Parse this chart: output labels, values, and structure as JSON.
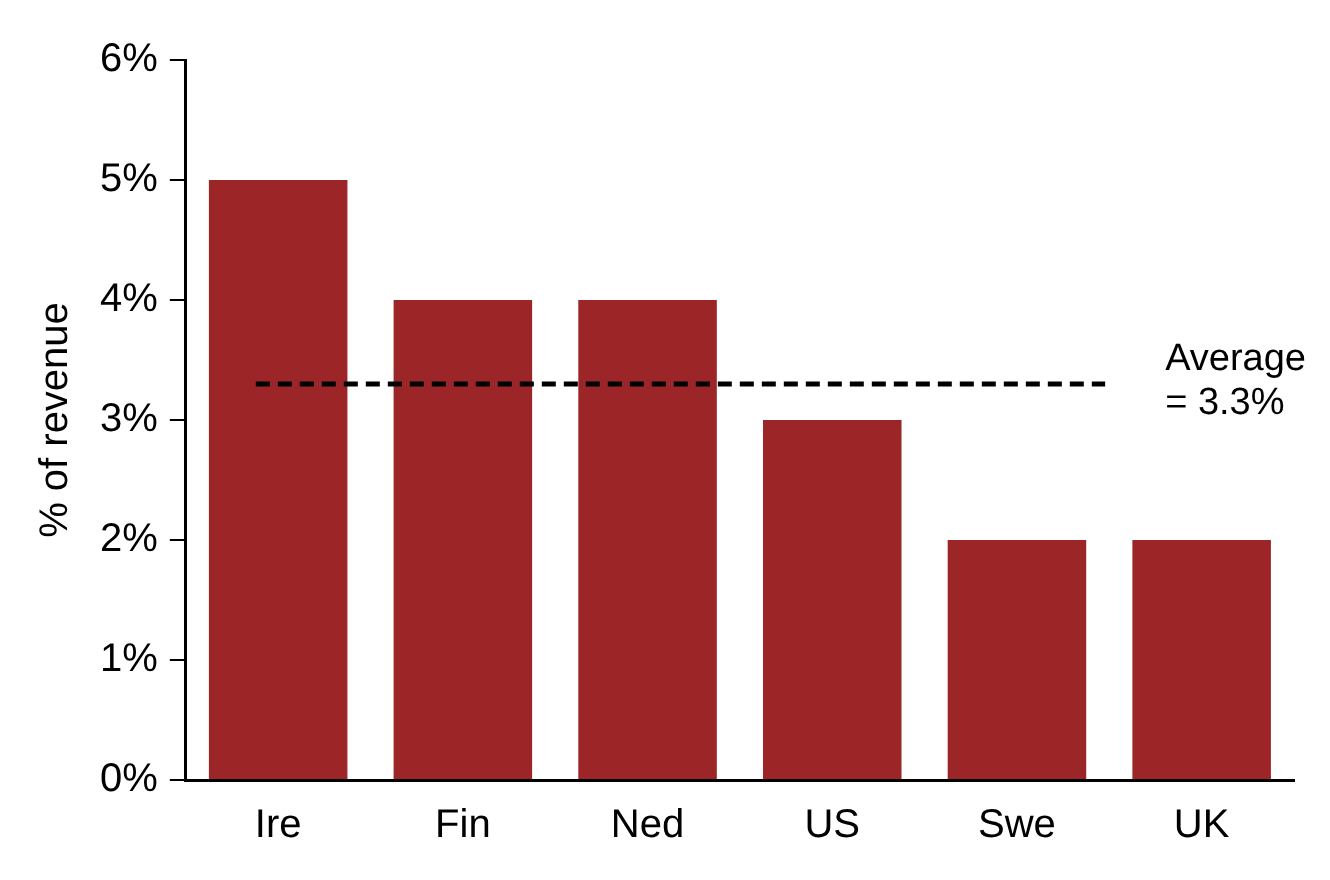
{
  "chart_data": {
    "type": "bar",
    "ylabel": "% of revenue",
    "categories": [
      "Ire",
      "Fin",
      "Ned",
      "US",
      "Swe",
      "UK"
    ],
    "values": [
      5,
      4,
      4,
      3,
      2,
      2
    ],
    "color": "#9b2527",
    "ylim": [
      0,
      6
    ],
    "yticks": [
      {
        "value": 0,
        "label": "0%"
      },
      {
        "value": 1,
        "label": "1%"
      },
      {
        "value": 2,
        "label": "2%"
      },
      {
        "value": 3,
        "label": "3%"
      },
      {
        "value": 4,
        "label": "4%"
      },
      {
        "value": 5,
        "label": "5%"
      },
      {
        "value": 6,
        "label": "6%"
      }
    ],
    "ref_lines": [
      {
        "axis": "y",
        "value": 3.3,
        "label": "Average = 3.3%",
        "color": "#000000",
        "line_style": "dashed"
      }
    ],
    "grid": false,
    "legend": false
  }
}
